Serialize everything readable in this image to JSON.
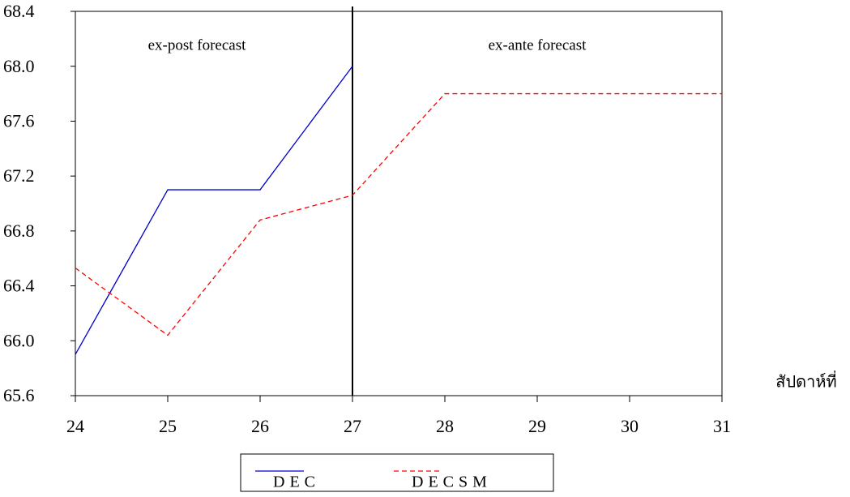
{
  "chart_data": {
    "type": "line",
    "x": [
      24,
      25,
      26,
      27,
      28,
      29,
      30,
      31
    ],
    "series": [
      {
        "name": "DEC",
        "color": "#0000cc",
        "dash": "solid",
        "values": [
          65.9,
          67.1,
          67.1,
          68.0,
          null,
          null,
          null,
          null
        ]
      },
      {
        "name": "DECSM",
        "color": "#ff0000",
        "dash": "dashed",
        "values": [
          66.53,
          66.04,
          66.88,
          67.06,
          67.8,
          67.8,
          67.8,
          67.8
        ]
      }
    ],
    "xlim": [
      24,
      31
    ],
    "xticks": [
      24,
      25,
      26,
      27,
      28,
      29,
      30,
      31
    ],
    "ylim": [
      65.6,
      68.4
    ],
    "yticks": [
      65.6,
      {
        "value": 66,
        "label": "66.0"
      },
      66.4,
      66.8,
      67.2,
      67.6,
      {
        "value": 68,
        "label": "68.0"
      },
      68.4
    ],
    "x_label": "สัปดาห์ที่",
    "divider": 27,
    "annotations": [
      "ex-post forecast",
      "ex-ante forecast"
    ],
    "legend": "bottom",
    "grid": false
  }
}
